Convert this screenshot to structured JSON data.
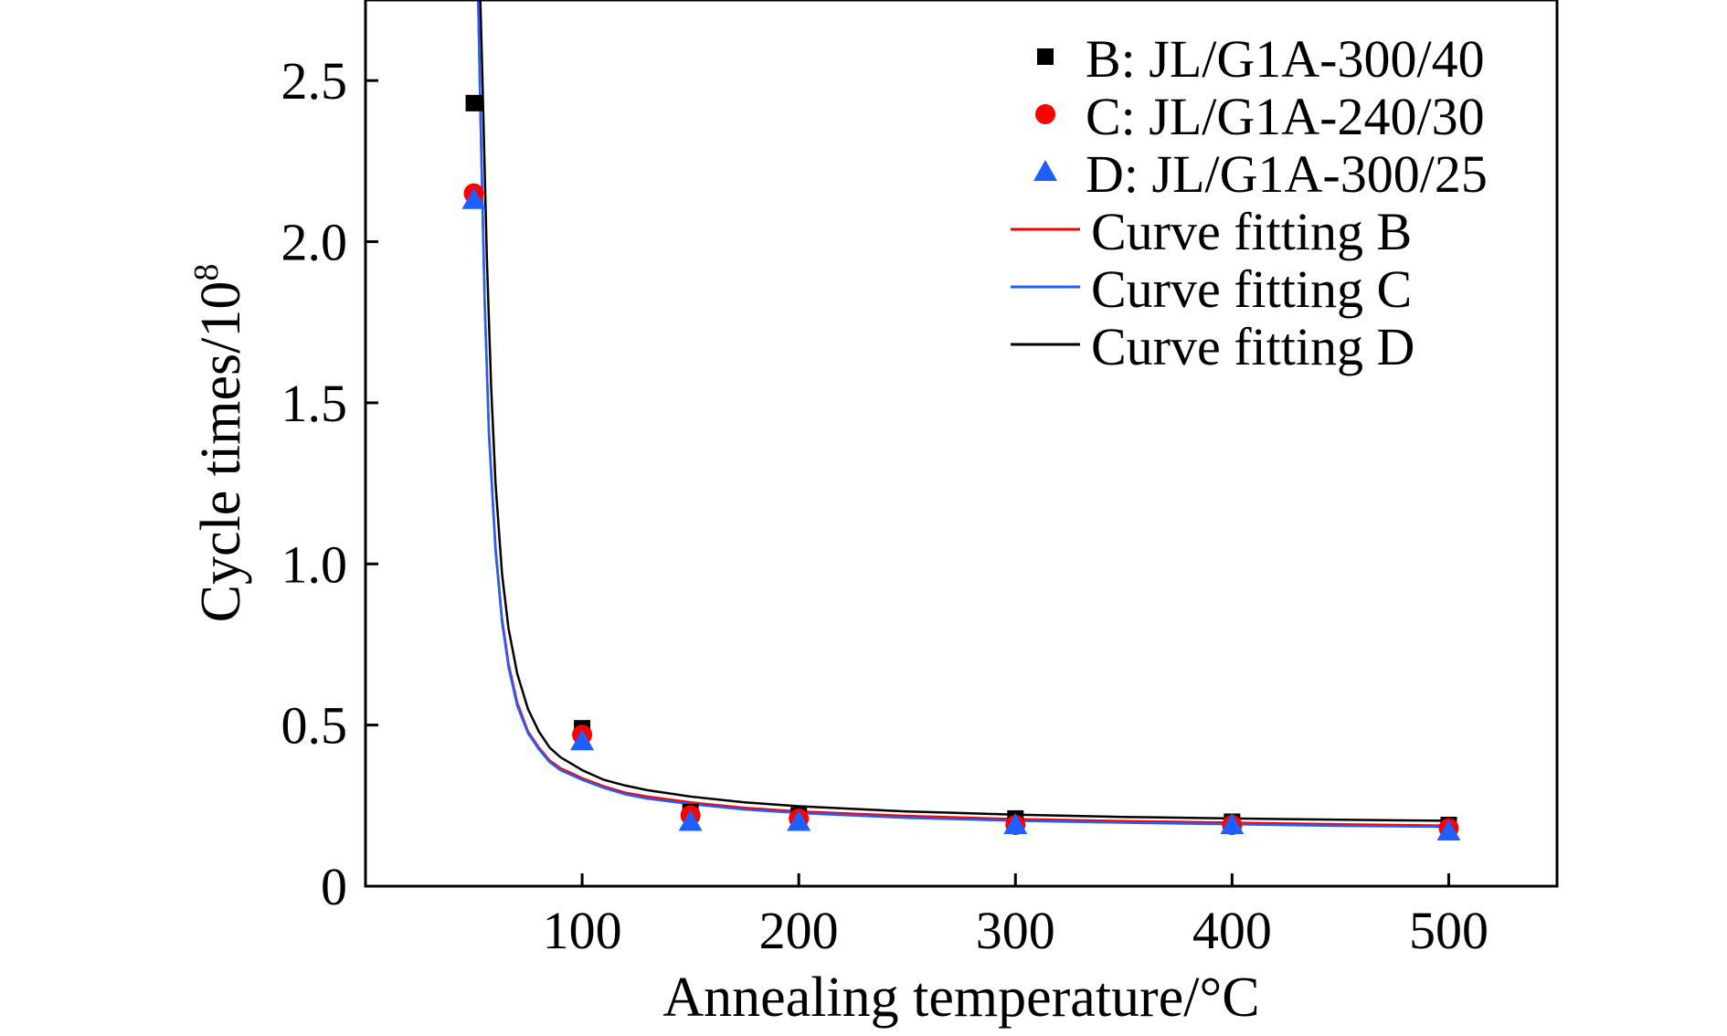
{
  "chart_data": {
    "type": "scatter",
    "xlabel": "Annealing temperature/°C",
    "ylabel": "Cycle times/10",
    "ylabel_superscript": "8",
    "xlim": [
      0,
      550
    ],
    "ylim": [
      0,
      2.75
    ],
    "x_ticks": [
      100,
      200,
      300,
      400,
      500
    ],
    "x_tick_labels": [
      "100",
      "200",
      "300",
      "400",
      "500"
    ],
    "y_ticks": [
      0,
      0.5,
      1.0,
      1.5,
      2.0,
      2.5
    ],
    "y_tick_labels": [
      "0",
      "0.5",
      "1.0",
      "1.5",
      "2.0",
      "2.5"
    ],
    "grid": false,
    "legend_position": "top-right",
    "x": [
      50,
      100,
      150,
      200,
      300,
      400,
      500
    ],
    "series": [
      {
        "name": "B: JL/G1A-300/40",
        "kind": "markers",
        "marker": "square",
        "color": "#000000",
        "values": [
          2.43,
          0.49,
          0.23,
          0.22,
          0.21,
          0.2,
          0.19
        ]
      },
      {
        "name": "C: JL/G1A-240/30",
        "kind": "markers",
        "marker": "circle",
        "color": "#ff0000",
        "values": [
          2.15,
          0.47,
          0.22,
          0.21,
          0.19,
          0.19,
          0.18
        ]
      },
      {
        "name": "D: JL/G1A-300/25",
        "kind": "markers",
        "marker": "triangle",
        "color": "#1f5fff",
        "values": [
          2.13,
          0.45,
          0.2,
          0.2,
          0.19,
          0.19,
          0.17
        ]
      },
      {
        "name": "Curve fitting B",
        "kind": "line",
        "color": "#ff0000",
        "x": [
          52,
          53,
          55,
          57,
          60,
          63,
          66,
          70,
          75,
          80,
          85,
          90,
          100,
          110,
          120,
          130,
          150,
          175,
          200,
          250,
          300,
          350,
          400,
          450,
          500
        ],
        "values": [
          2.75,
          2.41,
          1.82,
          1.41,
          1.05,
          0.83,
          0.69,
          0.57,
          0.48,
          0.43,
          0.39,
          0.366,
          0.335,
          0.31,
          0.29,
          0.278,
          0.26,
          0.243,
          0.232,
          0.218,
          0.208,
          0.202,
          0.197,
          0.192,
          0.188
        ]
      },
      {
        "name": "Curve fitting C",
        "kind": "line",
        "color": "#1f5fff",
        "x": [
          52,
          53,
          55,
          57,
          60,
          63,
          66,
          70,
          75,
          80,
          85,
          90,
          100,
          110,
          120,
          130,
          150,
          175,
          200,
          250,
          300,
          350,
          400,
          450,
          500
        ],
        "values": [
          2.75,
          2.4,
          1.81,
          1.4,
          1.04,
          0.82,
          0.68,
          0.56,
          0.475,
          0.425,
          0.385,
          0.36,
          0.33,
          0.305,
          0.285,
          0.272,
          0.255,
          0.238,
          0.227,
          0.212,
          0.203,
          0.197,
          0.192,
          0.187,
          0.184
        ]
      },
      {
        "name": "Curve fitting D",
        "kind": "line",
        "color": "#000000",
        "x": [
          53,
          54,
          56,
          58,
          60,
          63,
          66,
          70,
          75,
          80,
          85,
          90,
          100,
          110,
          120,
          130,
          150,
          175,
          200,
          250,
          300,
          350,
          400,
          450,
          500
        ],
        "values": [
          2.75,
          2.5,
          1.95,
          1.55,
          1.25,
          0.97,
          0.8,
          0.66,
          0.55,
          0.48,
          0.43,
          0.4,
          0.36,
          0.33,
          0.312,
          0.298,
          0.278,
          0.26,
          0.248,
          0.232,
          0.222,
          0.215,
          0.21,
          0.206,
          0.203
        ]
      }
    ]
  }
}
